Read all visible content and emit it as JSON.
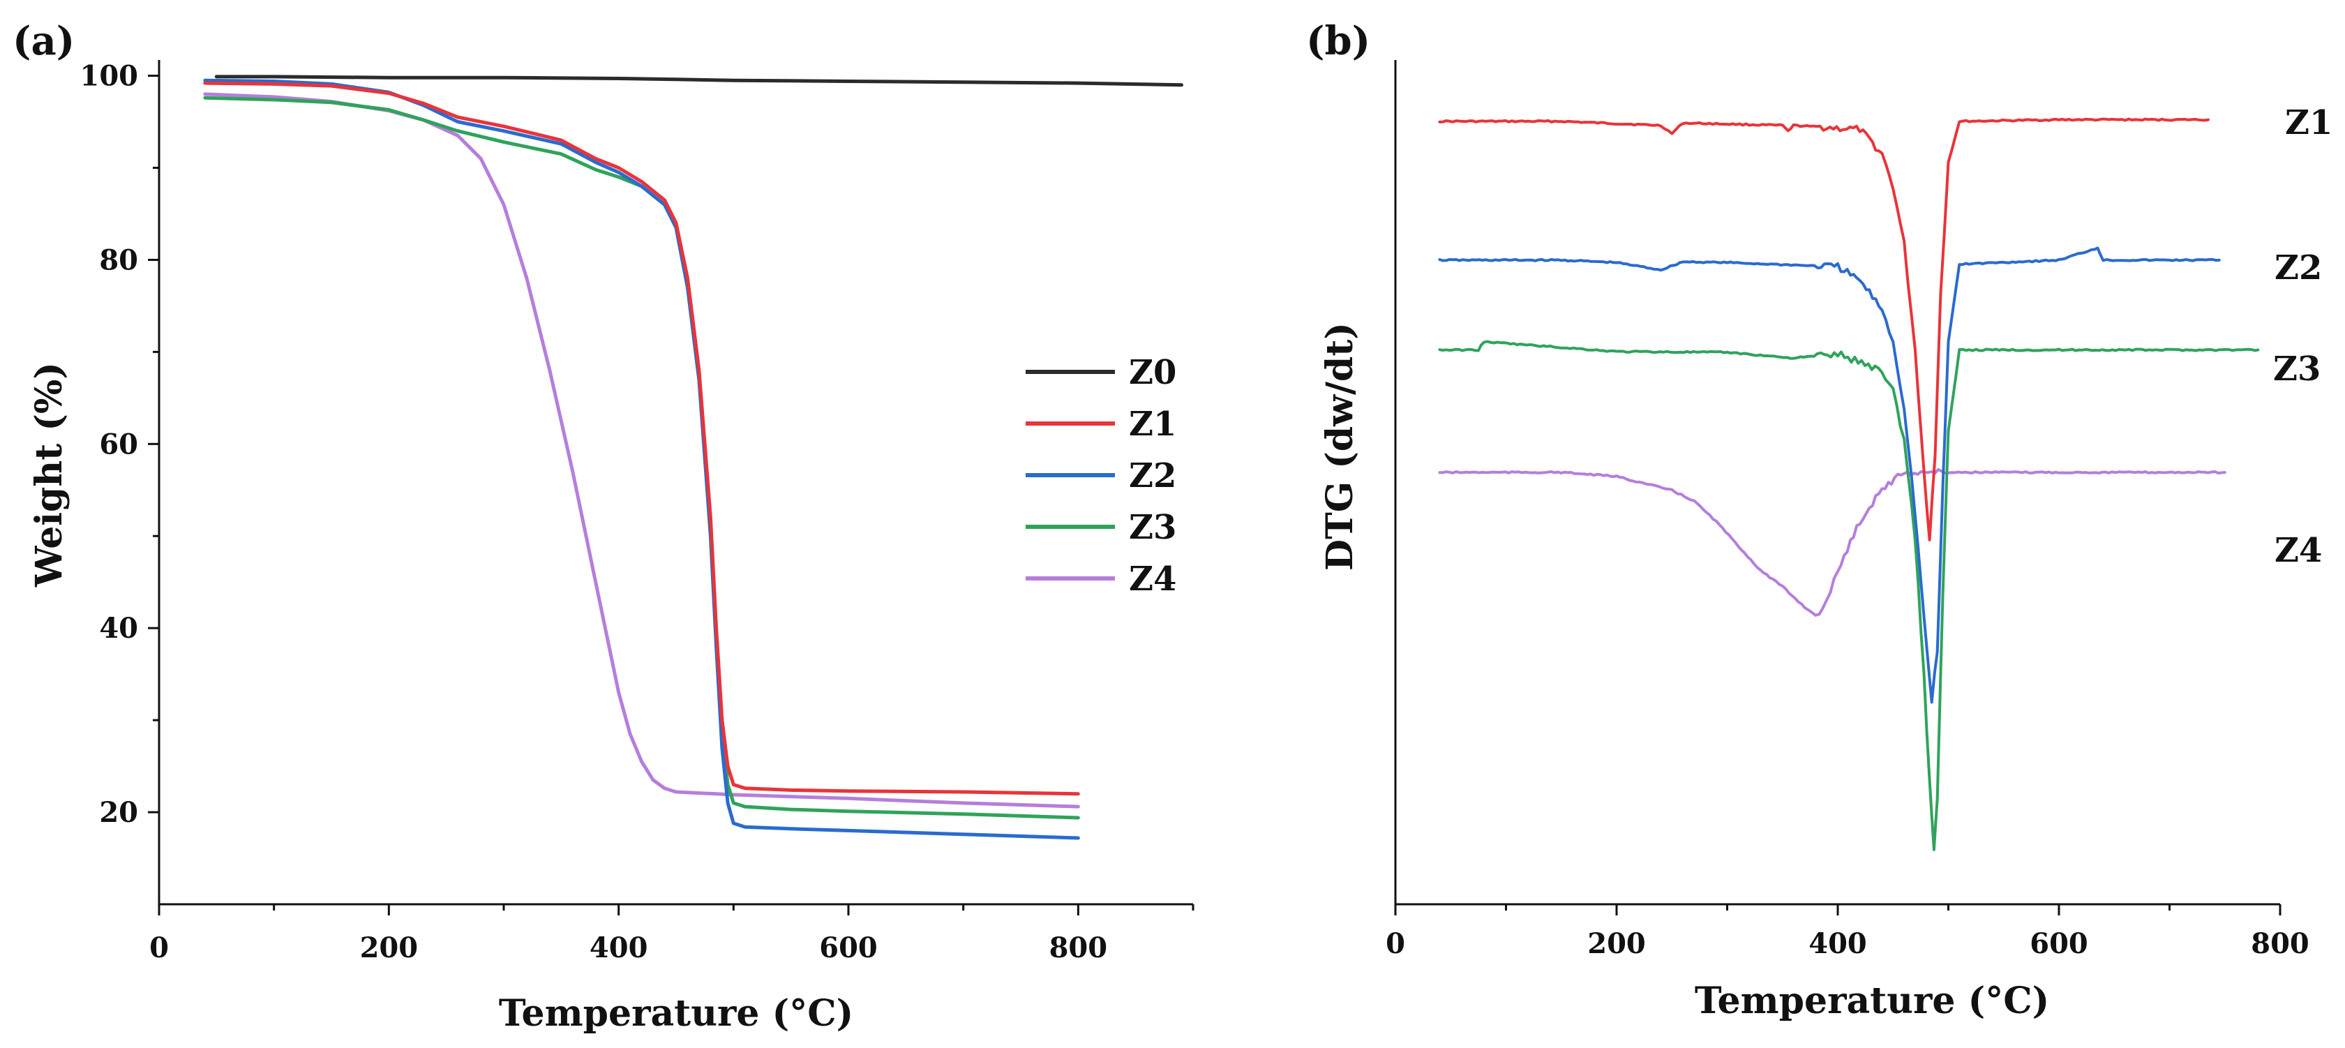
{
  "figure": {
    "panel_a_label": "(a)",
    "panel_b_label": "(b)"
  },
  "colors": {
    "Z0": "#2b2b2b",
    "Z1": "#e8343a",
    "Z2": "#2a6bcf",
    "Z3": "#2fa35b",
    "Z4": "#b57edc"
  },
  "chart_data": [
    {
      "type": "line",
      "panel": "a",
      "title": "",
      "xlabel": "Temperature (°C)",
      "ylabel": "Weight (%)",
      "xlim": [
        0,
        900
      ],
      "ylim": [
        10,
        100
      ],
      "xticks": [
        0,
        200,
        400,
        600,
        800
      ],
      "yticks": [
        20,
        40,
        60,
        80,
        100
      ],
      "legend": [
        "Z0",
        "Z1",
        "Z2",
        "Z3",
        "Z4"
      ],
      "legend_position": "center-right",
      "series": [
        {
          "name": "Z0",
          "x": [
            50,
            100,
            200,
            300,
            400,
            450,
            500,
            600,
            700,
            800,
            890
          ],
          "y": [
            99.9,
            99.9,
            99.8,
            99.8,
            99.7,
            99.6,
            99.5,
            99.4,
            99.3,
            99.2,
            99.0
          ]
        },
        {
          "name": "Z1",
          "x": [
            40,
            100,
            150,
            200,
            230,
            260,
            300,
            350,
            380,
            400,
            420,
            440,
            450,
            460,
            470,
            480,
            485,
            490,
            495,
            500,
            510,
            550,
            600,
            700,
            800
          ],
          "y": [
            99.2,
            99.1,
            98.9,
            98.1,
            97.0,
            95.5,
            94.5,
            93.0,
            91.0,
            90.0,
            88.5,
            86.5,
            84.0,
            78.0,
            68.0,
            52.0,
            40.0,
            30.0,
            25.0,
            23.0,
            22.6,
            22.4,
            22.3,
            22.2,
            22.0
          ]
        },
        {
          "name": "Z2",
          "x": [
            40,
            100,
            150,
            200,
            230,
            260,
            300,
            350,
            380,
            400,
            420,
            440,
            450,
            460,
            470,
            480,
            485,
            490,
            495,
            500,
            510,
            550,
            600,
            700,
            800
          ],
          "y": [
            99.5,
            99.4,
            99.1,
            98.2,
            96.8,
            95.0,
            94.0,
            92.6,
            90.6,
            89.5,
            88.0,
            86.0,
            83.5,
            77.0,
            67.0,
            50.0,
            38.0,
            27.0,
            21.0,
            18.8,
            18.4,
            18.2,
            18.0,
            17.6,
            17.2
          ]
        },
        {
          "name": "Z3",
          "x": [
            40,
            100,
            150,
            200,
            230,
            260,
            300,
            350,
            380,
            400,
            420,
            440,
            450,
            460,
            470,
            480,
            485,
            490,
            495,
            500,
            510,
            550,
            600,
            700,
            800
          ],
          "y": [
            97.6,
            97.4,
            97.1,
            96.3,
            95.2,
            94.0,
            92.8,
            91.5,
            89.8,
            89.0,
            88.0,
            86.0,
            83.5,
            77.0,
            67.0,
            51.0,
            39.0,
            29.0,
            23.0,
            21.0,
            20.6,
            20.3,
            20.1,
            19.8,
            19.4
          ]
        },
        {
          "name": "Z4",
          "x": [
            40,
            100,
            150,
            200,
            230,
            260,
            280,
            300,
            320,
            340,
            360,
            380,
            400,
            410,
            420,
            430,
            440,
            450,
            500,
            600,
            700,
            800
          ],
          "y": [
            98.0,
            97.7,
            97.2,
            96.2,
            95.2,
            93.5,
            91.0,
            86.0,
            78.0,
            68.0,
            57.0,
            45.0,
            33.0,
            28.5,
            25.5,
            23.5,
            22.6,
            22.2,
            21.9,
            21.5,
            21.0,
            20.6
          ]
        }
      ]
    },
    {
      "type": "line",
      "panel": "b",
      "title": "",
      "xlabel": "Temperature (°C)",
      "ylabel": "DTG (dw/dt)",
      "xlim": [
        0,
        800
      ],
      "ylim": [
        0,
        100
      ],
      "xticks": [
        0,
        200,
        400,
        600,
        800
      ],
      "yticks": [],
      "series_labels_at_right": true,
      "series": [
        {
          "name": "Z1",
          "x": [
            40,
            150,
            240,
            250,
            260,
            350,
            355,
            360,
            420,
            440,
            450,
            460,
            470,
            478,
            483,
            488,
            493,
            500,
            510,
            600,
            735
          ],
          "y": [
            93.0,
            93.0,
            92.5,
            91.5,
            92.8,
            92.5,
            91.8,
            92.5,
            92.0,
            89.0,
            85.0,
            78.0,
            65.0,
            50.0,
            42.0,
            52.0,
            72.0,
            88.0,
            93.0,
            93.2,
            93.2
          ]
        },
        {
          "name": "Z2",
          "x": [
            40,
            150,
            200,
            240,
            260,
            300,
            400,
            420,
            440,
            450,
            460,
            470,
            478,
            485,
            490,
            495,
            500,
            510,
            600,
            635,
            640,
            745
          ],
          "y": [
            76.0,
            76.0,
            75.7,
            74.8,
            75.8,
            75.7,
            75.2,
            73.5,
            70.0,
            66.0,
            58.0,
            45.0,
            32.0,
            22.0,
            28.0,
            48.0,
            66.0,
            75.5,
            76.0,
            77.5,
            76.0,
            76.0
          ]
        },
        {
          "name": "Z3",
          "x": [
            40,
            75,
            80,
            200,
            300,
            360,
            400,
            440,
            450,
            460,
            470,
            478,
            483,
            487,
            490,
            495,
            500,
            510,
            600,
            760,
            780
          ],
          "y": [
            65.0,
            65.0,
            66.0,
            64.8,
            64.7,
            64.0,
            64.5,
            62.5,
            60.0,
            54.0,
            42.0,
            25.0,
            12.0,
            4.0,
            10.0,
            35.0,
            55.0,
            65.0,
            65.0,
            65.0,
            65.0
          ]
        },
        {
          "name": "Z4",
          "x": [
            40,
            150,
            200,
            250,
            270,
            290,
            310,
            330,
            350,
            370,
            380,
            390,
            400,
            420,
            440,
            460,
            500,
            600,
            750
          ],
          "y": [
            50.0,
            50.0,
            49.5,
            47.8,
            46.5,
            44.0,
            41.0,
            38.0,
            36.0,
            33.5,
            32.5,
            34.0,
            38.0,
            44.0,
            48.0,
            50.0,
            50.0,
            50.0,
            50.0
          ]
        }
      ]
    }
  ]
}
